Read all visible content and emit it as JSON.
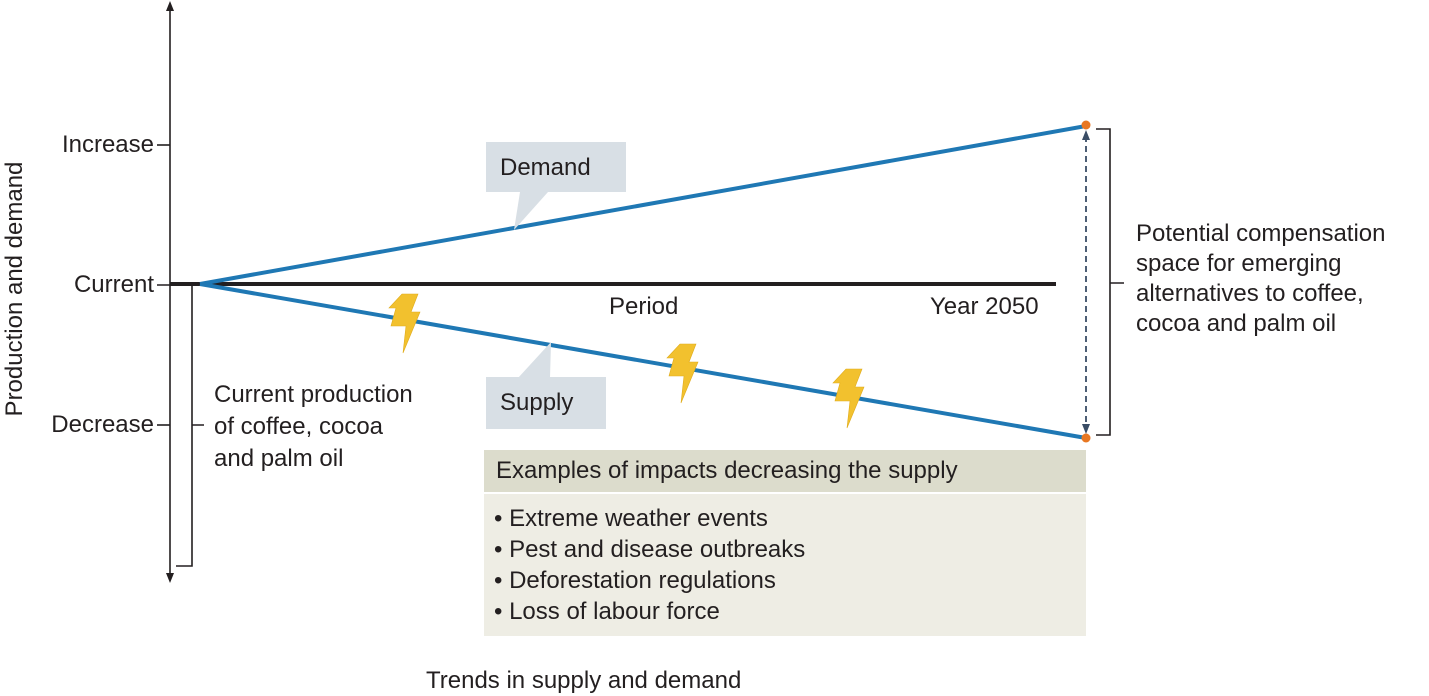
{
  "axis": {
    "y_title": "Production and demand",
    "x_title": "Trends in supply and demand",
    "y_ticks": [
      "Increase",
      "Current",
      "Decrease"
    ],
    "period_label": "Period",
    "end_label": "Year 2050"
  },
  "lines": {
    "demand_label": "Demand",
    "supply_label": "Supply"
  },
  "annotations": {
    "current_production": [
      "Current production",
      "of coffee, cocoa",
      "and palm oil"
    ],
    "compensation": [
      "Potential compensation",
      "space for emerging",
      "alternatives to coffee,",
      "cocoa and palm oil"
    ]
  },
  "impacts": {
    "title": "Examples of impacts decreasing the supply",
    "items": [
      "Extreme weather events",
      "Pest and disease outbreaks",
      "Deforestation regulations",
      "Loss of labour force"
    ]
  },
  "icons": [
    "lightning-icon",
    "lightning-icon",
    "lightning-icon"
  ],
  "colors": {
    "demand_supply_line": "#1f78b4",
    "baseline": "#231f20",
    "endpoint": "#e87722",
    "lightning": "#f2c12e",
    "callout_bg": "#d8dfe5",
    "impact_head_bg": "#dcdccc",
    "impact_body_bg": "#eeede4"
  }
}
